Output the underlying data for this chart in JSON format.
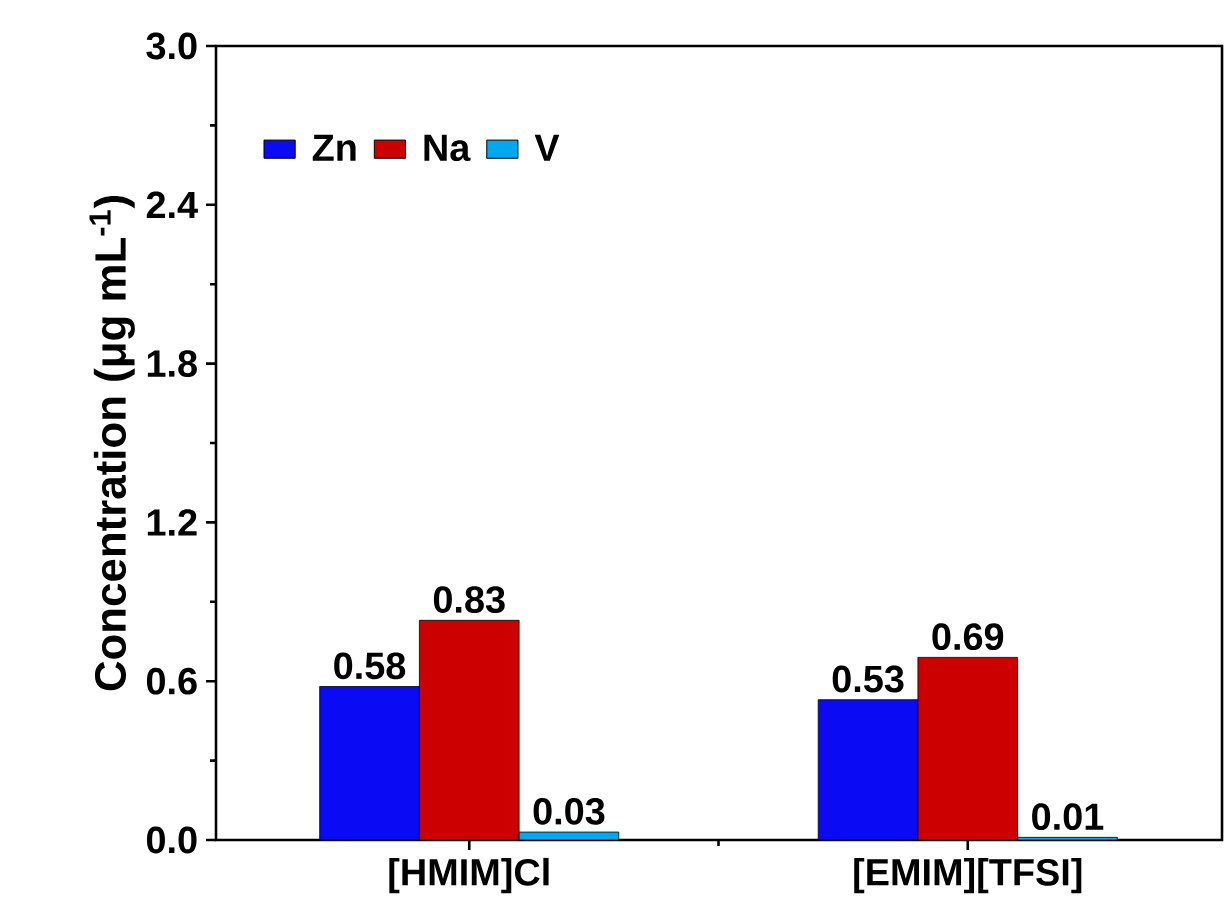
{
  "chart_data": {
    "type": "bar",
    "ylabel": "Concentration (μg mL$^{-1}$)",
    "categories": [
      "[HMIM]Cl",
      "[EMIM][TFSI]"
    ],
    "series": [
      {
        "name": "Zn",
        "color": "#0a0af5",
        "values": [
          0.58,
          0.53
        ]
      },
      {
        "name": "Na",
        "color": "#cc0000",
        "values": [
          0.83,
          0.69
        ]
      },
      {
        "name": "V",
        "color": "#00a8f0",
        "values": [
          0.03,
          0.01
        ]
      }
    ],
    "ylim": [
      0,
      3
    ],
    "yticks": [
      {
        "value": 0,
        "label": "0.0"
      },
      0.6,
      1.2,
      1.8,
      2.4,
      {
        "value": 3,
        "label": "3.0"
      }
    ],
    "data_labels": true,
    "legend": "top left"
  }
}
